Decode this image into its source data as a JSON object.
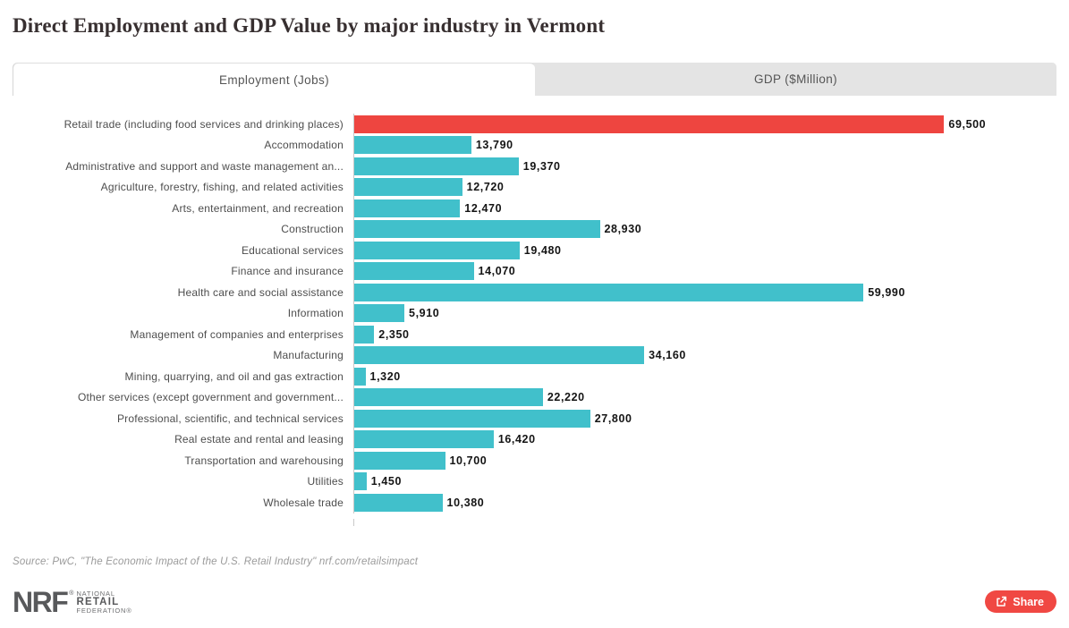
{
  "title": "Direct Employment and GDP Value by major industry in Vermont",
  "tabs": [
    {
      "label": "Employment (Jobs)",
      "active": true
    },
    {
      "label": "GDP ($Million)",
      "active": false
    }
  ],
  "chart_data": {
    "type": "bar",
    "orientation": "horizontal",
    "title": "Direct Employment and GDP Value by major industry in Vermont",
    "active_series": "Employment (Jobs)",
    "categories": [
      "Retail trade (including food services and drinking places)",
      "Accommodation",
      "Administrative and support and waste management an...",
      "Agriculture, forestry, fishing, and related activities",
      "Arts, entertainment, and recreation",
      "Construction",
      "Educational services",
      "Finance and insurance",
      "Health care and social assistance",
      "Information",
      "Management of companies and enterprises",
      "Manufacturing",
      "Mining, quarrying, and oil and gas extraction",
      "Other services (except government and government...",
      "Professional, scientific, and technical services",
      "Real estate and rental and leasing",
      "Transportation and warehousing",
      "Utilities",
      "Wholesale trade"
    ],
    "values": [
      69500,
      13790,
      19370,
      12720,
      12470,
      28930,
      19480,
      14070,
      59990,
      5910,
      2350,
      34160,
      1320,
      22220,
      27800,
      16420,
      10700,
      1450,
      10380
    ],
    "value_labels": [
      "69,500",
      "13,790",
      "19,370",
      "12,720",
      "12,470",
      "28,930",
      "19,480",
      "14,070",
      "59,990",
      "5,910",
      "2,350",
      "34,160",
      "1,320",
      "22,220",
      "27,800",
      "16,420",
      "10,700",
      "1,450",
      "10,380"
    ],
    "highlight_index": 0,
    "highlight_color": "#ee4540",
    "bar_color": "#41c0cb",
    "xlim": [
      0,
      74000
    ],
    "grid": false,
    "legend": "none"
  },
  "source": "Source: PwC, \"The Economic Impact of the U.S. Retail Industry\" nrf.com/retailsimpact",
  "footer": {
    "logo_text": "NRF",
    "logo_reg": "®",
    "logo_sub": [
      "NATIONAL",
      "RETAIL",
      "FEDERATION®"
    ],
    "share_label": "Share"
  },
  "colors": {
    "accent_red": "#ee4540",
    "accent_teal": "#41c0cb",
    "tab_inactive_bg": "#e4e4e4",
    "axis_line": "#c9c9c9"
  }
}
